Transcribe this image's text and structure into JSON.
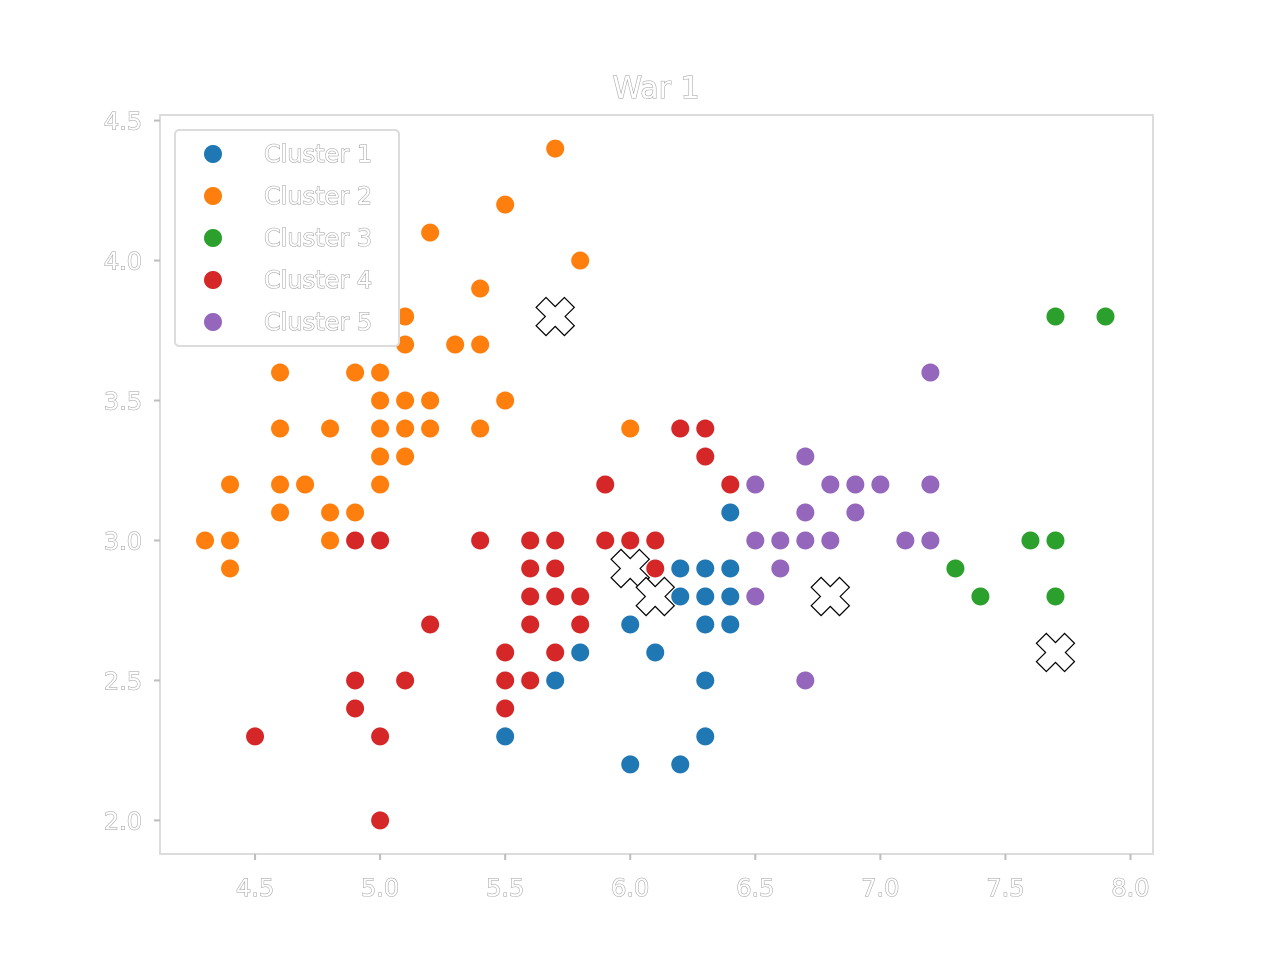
{
  "colors": {
    "Cluster 1": "#1f77b4",
    "Cluster 2": "#ff7f0e",
    "Cluster 3": "#2ca02c",
    "Cluster 4": "#d62728",
    "Cluster 5": "#9467bd",
    "centroid": "#ffffff"
  },
  "chart_data": {
    "type": "scatter",
    "title": "War 1",
    "xlabel": "",
    "ylabel": "",
    "xlim": [
      4.12,
      8.09
    ],
    "ylim": [
      1.88,
      4.52
    ],
    "x_ticks": [
      "4.5",
      "5.0",
      "5.5",
      "6.0",
      "6.5",
      "7.0",
      "7.5",
      "8.0"
    ],
    "y_ticks": [
      "2.0",
      "2.5",
      "3.0",
      "3.5",
      "4.0",
      "4.5"
    ],
    "grid": false,
    "legend_position": "top-left",
    "series": [
      {
        "name": "Cluster 1",
        "points": [
          [
            6.4,
            3.1
          ],
          [
            6.2,
            2.9
          ],
          [
            6.3,
            2.9
          ],
          [
            6.4,
            2.9
          ],
          [
            6.2,
            2.8
          ],
          [
            6.3,
            2.8
          ],
          [
            6.4,
            2.8
          ],
          [
            6.0,
            2.7
          ],
          [
            6.3,
            2.7
          ],
          [
            6.4,
            2.7
          ],
          [
            5.8,
            2.6
          ],
          [
            6.1,
            2.6
          ],
          [
            5.7,
            2.5
          ],
          [
            6.3,
            2.5
          ],
          [
            5.5,
            2.3
          ],
          [
            6.3,
            2.3
          ],
          [
            6.0,
            2.2
          ],
          [
            6.2,
            2.2
          ]
        ]
      },
      {
        "name": "Cluster 2",
        "points": [
          [
            5.7,
            4.4
          ],
          [
            5.5,
            4.2
          ],
          [
            5.2,
            4.1
          ],
          [
            5.8,
            4.0
          ],
          [
            5.4,
            3.9
          ],
          [
            5.1,
            3.8
          ],
          [
            5.1,
            3.7
          ],
          [
            5.3,
            3.7
          ],
          [
            5.4,
            3.7
          ],
          [
            4.6,
            3.6
          ],
          [
            4.9,
            3.6
          ],
          [
            5.0,
            3.6
          ],
          [
            5.0,
            3.5
          ],
          [
            5.1,
            3.5
          ],
          [
            5.2,
            3.5
          ],
          [
            5.5,
            3.5
          ],
          [
            4.6,
            3.4
          ],
          [
            4.8,
            3.4
          ],
          [
            5.0,
            3.4
          ],
          [
            5.1,
            3.4
          ],
          [
            5.2,
            3.4
          ],
          [
            5.4,
            3.4
          ],
          [
            6.0,
            3.4
          ],
          [
            5.0,
            3.3
          ],
          [
            5.1,
            3.3
          ],
          [
            4.4,
            3.2
          ],
          [
            4.6,
            3.2
          ],
          [
            4.7,
            3.2
          ],
          [
            5.0,
            3.2
          ],
          [
            4.6,
            3.1
          ],
          [
            4.8,
            3.1
          ],
          [
            4.9,
            3.1
          ],
          [
            4.3,
            3.0
          ],
          [
            4.4,
            3.0
          ],
          [
            4.8,
            3.0
          ],
          [
            4.4,
            2.9
          ]
        ]
      },
      {
        "name": "Cluster 3",
        "points": [
          [
            7.7,
            3.8
          ],
          [
            7.9,
            3.8
          ],
          [
            7.6,
            3.0
          ],
          [
            7.7,
            3.0
          ],
          [
            7.3,
            2.9
          ],
          [
            7.4,
            2.8
          ],
          [
            7.7,
            2.8
          ]
        ]
      },
      {
        "name": "Cluster 4",
        "points": [
          [
            6.2,
            3.4
          ],
          [
            6.3,
            3.4
          ],
          [
            6.3,
            3.3
          ],
          [
            5.9,
            3.2
          ],
          [
            6.4,
            3.2
          ],
          [
            4.9,
            3.0
          ],
          [
            5.0,
            3.0
          ],
          [
            5.4,
            3.0
          ],
          [
            5.6,
            3.0
          ],
          [
            5.7,
            3.0
          ],
          [
            5.9,
            3.0
          ],
          [
            6.0,
            3.0
          ],
          [
            6.1,
            3.0
          ],
          [
            5.6,
            2.9
          ],
          [
            5.7,
            2.9
          ],
          [
            6.1,
            2.9
          ],
          [
            5.6,
            2.8
          ],
          [
            5.7,
            2.8
          ],
          [
            5.8,
            2.8
          ],
          [
            5.2,
            2.7
          ],
          [
            5.6,
            2.7
          ],
          [
            5.8,
            2.7
          ],
          [
            5.5,
            2.6
          ],
          [
            5.7,
            2.6
          ],
          [
            4.9,
            2.5
          ],
          [
            5.1,
            2.5
          ],
          [
            5.5,
            2.5
          ],
          [
            5.6,
            2.5
          ],
          [
            4.9,
            2.4
          ],
          [
            5.5,
            2.4
          ],
          [
            4.5,
            2.3
          ],
          [
            5.0,
            2.3
          ],
          [
            5.0,
            2.0
          ]
        ]
      },
      {
        "name": "Cluster 5",
        "points": [
          [
            7.2,
            3.6
          ],
          [
            6.7,
            3.3
          ],
          [
            6.5,
            3.2
          ],
          [
            6.8,
            3.2
          ],
          [
            6.9,
            3.2
          ],
          [
            7.0,
            3.2
          ],
          [
            7.2,
            3.2
          ],
          [
            6.7,
            3.1
          ],
          [
            6.9,
            3.1
          ],
          [
            6.5,
            3.0
          ],
          [
            6.6,
            3.0
          ],
          [
            6.7,
            3.0
          ],
          [
            6.8,
            3.0
          ],
          [
            7.1,
            3.0
          ],
          [
            7.2,
            3.0
          ],
          [
            6.6,
            2.9
          ],
          [
            6.5,
            2.8
          ],
          [
            6.7,
            2.5
          ]
        ]
      }
    ],
    "centroids": [
      [
        5.7,
        3.8
      ],
      [
        6.0,
        2.9
      ],
      [
        6.1,
        2.8
      ],
      [
        6.8,
        2.8
      ],
      [
        7.7,
        2.6
      ]
    ]
  }
}
